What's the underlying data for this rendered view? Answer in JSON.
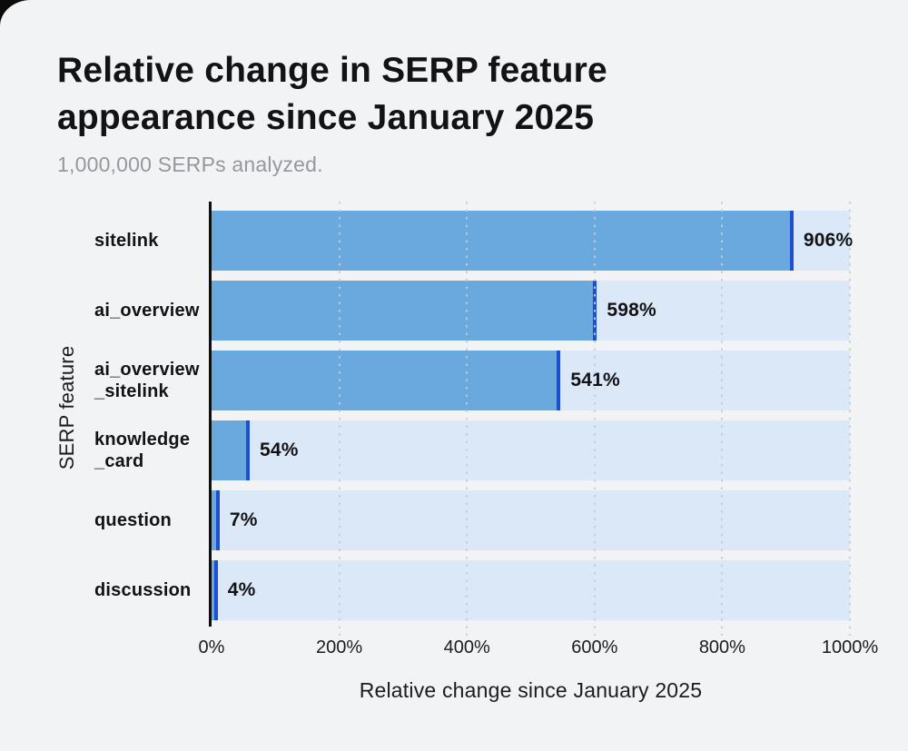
{
  "header": {
    "title_line1": "Relative change in SERP feature",
    "title_line2": "appearance since January 2025",
    "subtitle": "1,000,000 SERPs analyzed."
  },
  "chart_data": {
    "type": "bar",
    "orientation": "horizontal",
    "title": "Relative change in SERP feature appearance since January 2025",
    "subtitle": "1,000,000 SERPs analyzed.",
    "categories": [
      "sitelink",
      "ai_overview",
      "ai_overview_sitelink",
      "knowledge_card",
      "question",
      "discussion"
    ],
    "category_display_lines": [
      [
        "sitelink"
      ],
      [
        "ai_overview"
      ],
      [
        "ai_overview",
        "_sitelink"
      ],
      [
        "knowledge",
        "_card"
      ],
      [
        "question"
      ],
      [
        "discussion"
      ]
    ],
    "values": [
      906,
      598,
      541,
      54,
      7,
      4
    ],
    "value_labels": [
      "906%",
      "598%",
      "541%",
      "54%",
      "7%",
      "4%"
    ],
    "xlabel": "Relative change since January 2025",
    "ylabel": "SERP feature",
    "xlim": [
      0,
      1000
    ],
    "xticks": [
      0,
      200,
      400,
      600,
      800,
      1000
    ],
    "xtick_labels": [
      "0%",
      "200%",
      "400%",
      "600%",
      "800%",
      "1000%"
    ],
    "grid": "vertical-dotted-overlay",
    "legend": "none",
    "colors": {
      "background": "#f2f3f5",
      "bar_fill": "#69a9de",
      "bar_endcap": "#1e4fd2",
      "bar_track": "#dae8f8",
      "grid_dot": "#c7ccd3",
      "axis_line": "#0d0d0d",
      "text": "#131316",
      "subtitle_text": "#97989d"
    }
  }
}
